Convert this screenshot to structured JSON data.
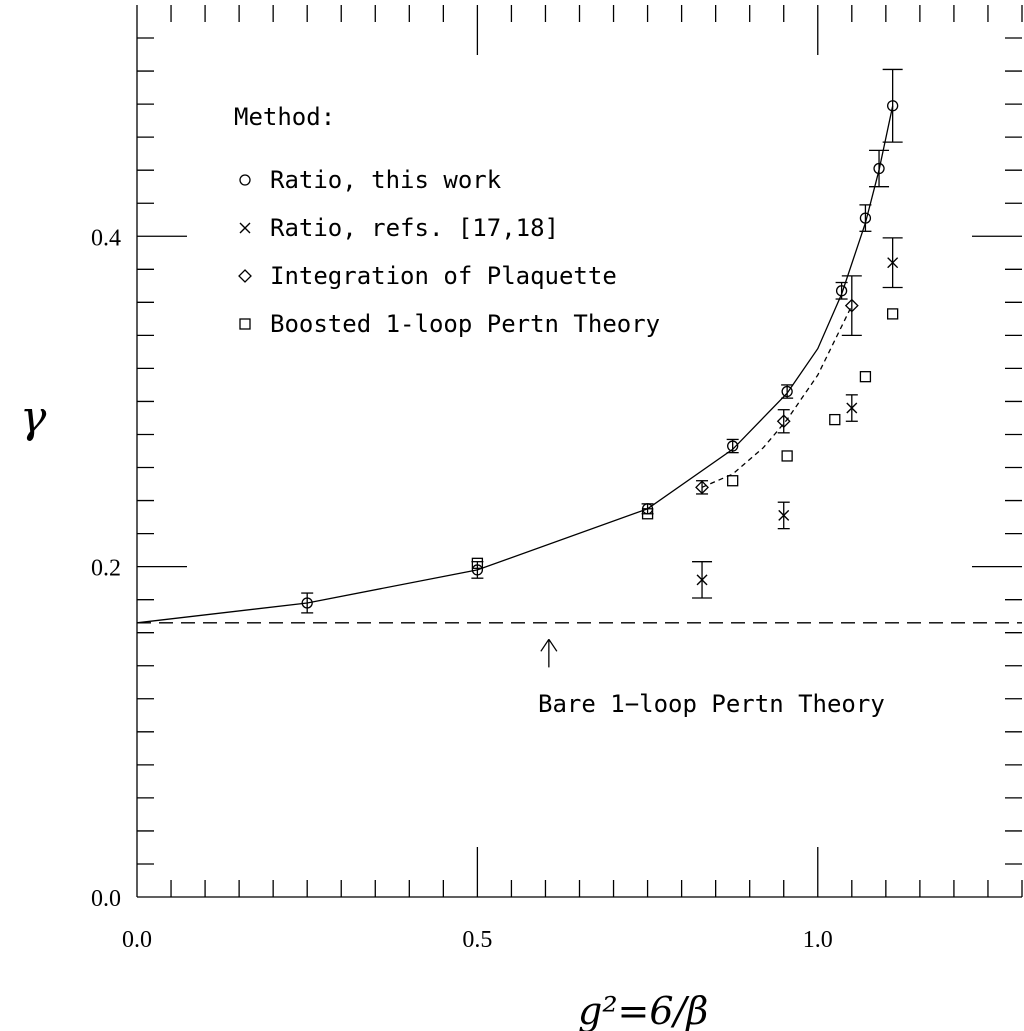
{
  "chart_data": {
    "type": "scatter",
    "xlabel": "g²=6/β",
    "ylabel": "γ",
    "xlim": [
      0.0,
      1.3
    ],
    "ylim": [
      0.0,
      0.54
    ],
    "x_ticks": [
      {
        "value": 0.0,
        "label": "0.0"
      },
      {
        "value": 0.5,
        "label": "0.5"
      },
      {
        "value": 1.0,
        "label": "1.0"
      }
    ],
    "y_ticks": [
      {
        "value": 0.0,
        "label": "0.0"
      },
      {
        "value": 0.2,
        "label": "0.2"
      },
      {
        "value": 0.4,
        "label": "0.4"
      }
    ],
    "legend_title": "Method:",
    "legend_placement": "top-left",
    "series": [
      {
        "name": "Ratio, this work",
        "marker": "circle",
        "points": [
          {
            "x": 0.25,
            "y": 0.178,
            "err": 0.006
          },
          {
            "x": 0.5,
            "y": 0.198,
            "err": 0.005
          },
          {
            "x": 0.75,
            "y": 0.235,
            "err": 0.003
          },
          {
            "x": 0.875,
            "y": 0.273,
            "err": 0.004
          },
          {
            "x": 0.955,
            "y": 0.306,
            "err": 0.004
          },
          {
            "x": 1.035,
            "y": 0.367,
            "err": 0.005
          },
          {
            "x": 1.07,
            "y": 0.411,
            "err": 0.008
          },
          {
            "x": 1.09,
            "y": 0.441,
            "err": 0.011
          },
          {
            "x": 1.11,
            "y": 0.479,
            "err": 0.022
          }
        ]
      },
      {
        "name": "Ratio, refs. [17,18]",
        "marker": "cross",
        "points": [
          {
            "x": 0.83,
            "y": 0.192,
            "err": 0.011
          },
          {
            "x": 0.95,
            "y": 0.231,
            "err": 0.008
          },
          {
            "x": 1.05,
            "y": 0.296,
            "err": 0.008
          },
          {
            "x": 1.11,
            "y": 0.384,
            "err": 0.015
          }
        ]
      },
      {
        "name": "Integration of Plaquette",
        "marker": "diamond",
        "points": [
          {
            "x": 0.83,
            "y": 0.248,
            "err": 0.004
          },
          {
            "x": 0.95,
            "y": 0.288,
            "err": 0.007
          },
          {
            "x": 1.05,
            "y": 0.358,
            "err": 0.018
          }
        ]
      },
      {
        "name": "Boosted 1-loop Pertn Theory",
        "marker": "square",
        "points": [
          {
            "x": 0.5,
            "y": 0.202
          },
          {
            "x": 0.75,
            "y": 0.232
          },
          {
            "x": 0.875,
            "y": 0.252
          },
          {
            "x": 0.955,
            "y": 0.267
          },
          {
            "x": 1.025,
            "y": 0.289
          },
          {
            "x": 1.07,
            "y": 0.315
          },
          {
            "x": 1.11,
            "y": 0.353
          }
        ]
      }
    ],
    "lines": [
      {
        "style": "solid",
        "points": [
          [
            0.0,
            0.166
          ],
          [
            0.25,
            0.178
          ],
          [
            0.5,
            0.198
          ],
          [
            0.75,
            0.235
          ],
          [
            0.875,
            0.271
          ],
          [
            0.955,
            0.305
          ],
          [
            1.0,
            0.332
          ],
          [
            1.035,
            0.365
          ],
          [
            1.07,
            0.408
          ],
          [
            1.09,
            0.44
          ],
          [
            1.11,
            0.479
          ]
        ]
      },
      {
        "style": "dotted",
        "points": [
          [
            0.83,
            0.248
          ],
          [
            0.875,
            0.256
          ],
          [
            0.92,
            0.272
          ],
          [
            0.955,
            0.289
          ],
          [
            1.0,
            0.316
          ],
          [
            1.05,
            0.358
          ]
        ]
      },
      {
        "style": "dashed",
        "points": [
          [
            0.0,
            0.166
          ],
          [
            1.3,
            0.166
          ]
        ]
      }
    ],
    "annotation": {
      "text": "Bare 1−loop Pertn Theory",
      "arrow_x": 0.605,
      "arrow_y_from": 0.139,
      "arrow_y_to": 0.156
    }
  }
}
